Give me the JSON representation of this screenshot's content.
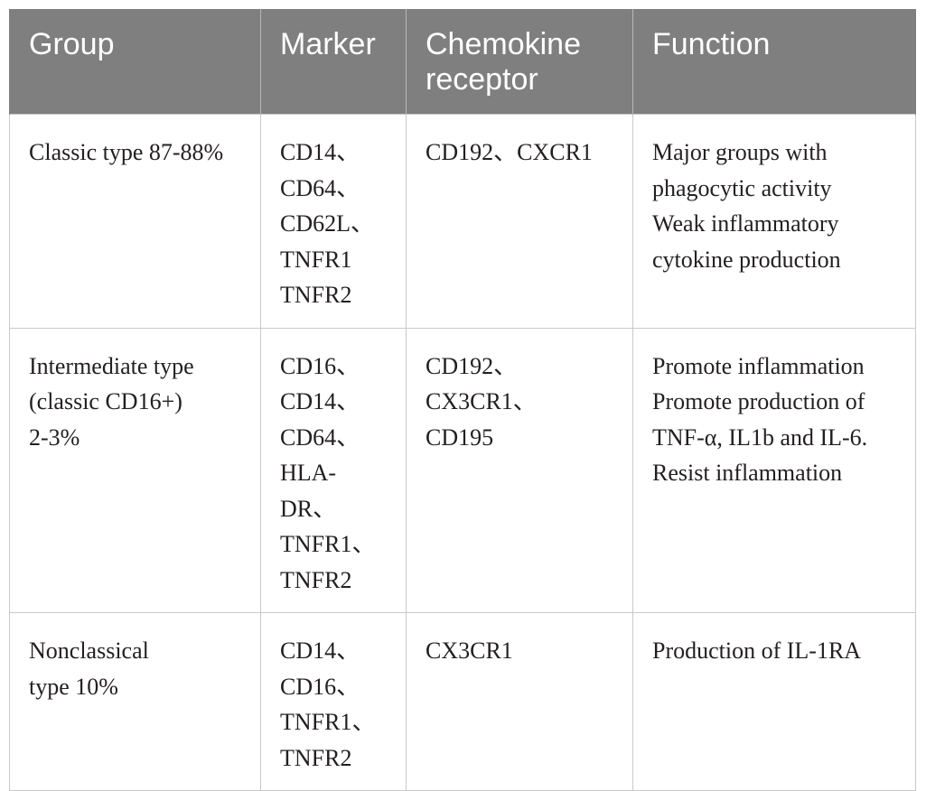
{
  "table": {
    "headers": [
      "Group",
      "Marker",
      "Chemokine receptor",
      "Function"
    ],
    "header_lines": [
      [
        "Group"
      ],
      [
        "Marker"
      ],
      [
        "Chemokine",
        "receptor"
      ],
      [
        "Function"
      ]
    ],
    "rows": [
      {
        "group": [
          "Classic type 87-88%"
        ],
        "marker": [
          "CD14、",
          "CD64、",
          "CD62L、",
          "TNFR1",
          "TNFR2"
        ],
        "chemokine_receptor": [
          "CD192、CXCR1"
        ],
        "function": [
          "Major groups with",
          "phagocytic activity",
          "Weak inflammatory",
          "cytokine production"
        ]
      },
      {
        "group": [
          "Intermediate type",
          "(classic CD16+)",
          "2-3%"
        ],
        "marker": [
          "CD16、",
          "CD14、",
          "CD64、",
          "HLA-",
          "DR、",
          "TNFR1、",
          "TNFR2"
        ],
        "chemokine_receptor": [
          "CD192、",
          "CX3CR1、",
          "CD195"
        ],
        "function": [
          "Promote inflammation",
          "Promote production of",
          "TNF-α, IL1b and IL-6.",
          "Resist inflammation"
        ]
      },
      {
        "group": [
          "Nonclassical",
          "type 10%"
        ],
        "marker": [
          "CD14、",
          "CD16、",
          "TNFR1、",
          "TNFR2"
        ],
        "chemokine_receptor": [
          "CX3CR1"
        ],
        "function": [
          "Production of IL-1RA"
        ]
      }
    ]
  }
}
